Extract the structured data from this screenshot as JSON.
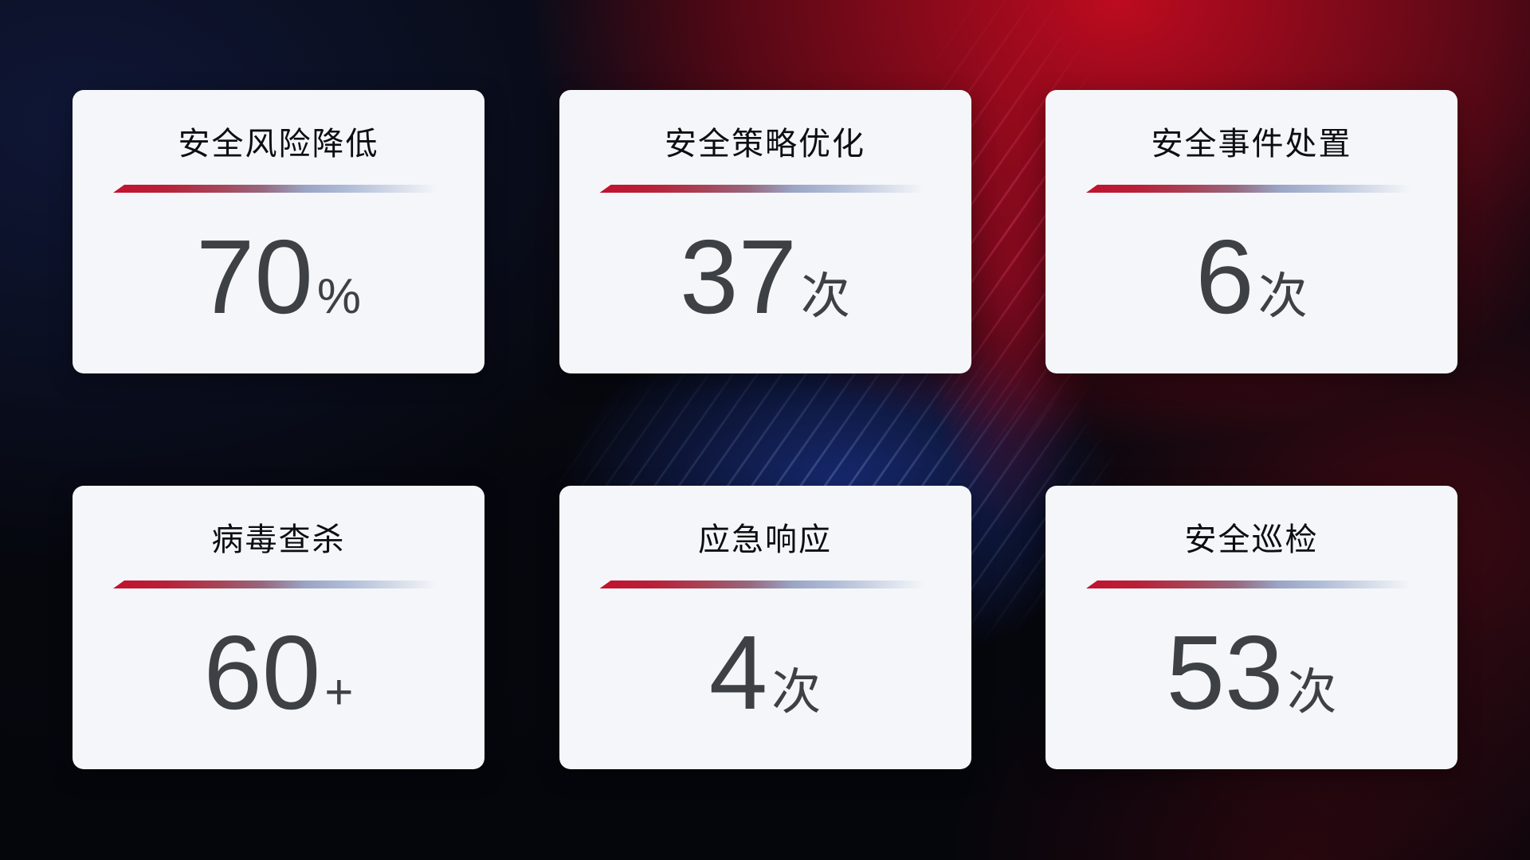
{
  "theme": {
    "card_background": "#f4f6f9",
    "title_color": "#0d0e11",
    "value_color": "#3d4045",
    "divider_red": "#c1122f",
    "divider_blue": "#aebbd6",
    "background_red": "#c10b20",
    "background_blue": "#1a3084",
    "background_base": "#05060c"
  },
  "cards": [
    {
      "id": "risk-reduction",
      "title": "安全风险降低",
      "value": "70",
      "unit": "%"
    },
    {
      "id": "policy-optimization",
      "title": "安全策略优化",
      "value": "37",
      "unit": "次"
    },
    {
      "id": "incident-handling",
      "title": "安全事件处置",
      "value": "6",
      "unit": "次"
    },
    {
      "id": "virus-scan",
      "title": "病毒查杀",
      "value": "60",
      "unit": "+"
    },
    {
      "id": "emergency-response",
      "title": "应急响应",
      "value": "4",
      "unit": "次"
    },
    {
      "id": "security-inspection",
      "title": "安全巡检",
      "value": "53",
      "unit": "次"
    }
  ]
}
